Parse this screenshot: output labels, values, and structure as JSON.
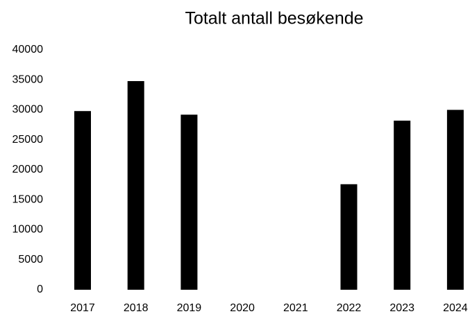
{
  "chart_data": {
    "type": "bar",
    "title": "Totalt antall besøkende",
    "categories": [
      "2017",
      "2018",
      "2019",
      "2020",
      "2021",
      "2022",
      "2023",
      "2024"
    ],
    "values": [
      29800,
      34800,
      29200,
      0,
      0,
      17600,
      28200,
      30000
    ],
    "color": "#000000",
    "ylim": [
      0,
      40000
    ],
    "yticks": [
      0,
      5000,
      10000,
      15000,
      20000,
      25000,
      30000,
      35000,
      40000
    ],
    "grid": false
  }
}
